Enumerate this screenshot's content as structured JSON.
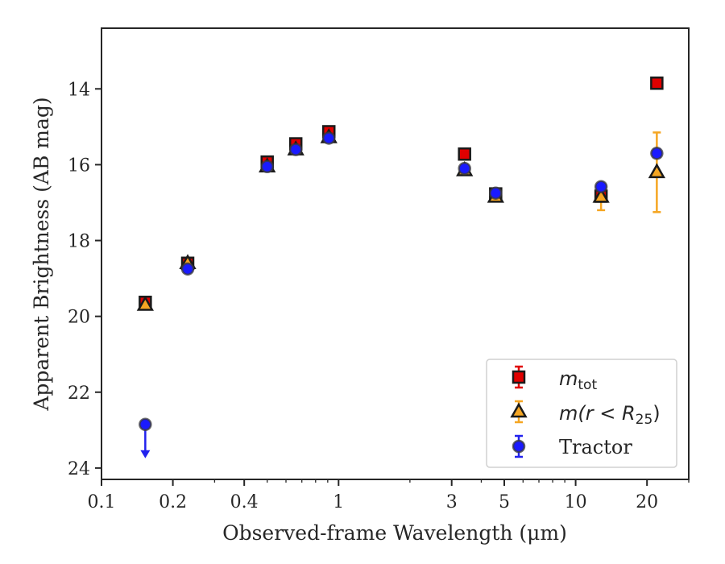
{
  "chart_data": {
    "type": "scatter",
    "xlabel": "Observed-frame Wavelength (μm)",
    "ylabel": "Apparent Brightness (AB mag)",
    "xscale": "log",
    "xlim": [
      0.1,
      30
    ],
    "ylim": [
      24.3,
      12.4
    ],
    "y_inverted": true,
    "x_ticks": [
      {
        "value": 0.1,
        "label": "0.1"
      },
      {
        "value": 0.2,
        "label": "0.2"
      },
      {
        "value": 0.4,
        "label": "0.4"
      },
      {
        "value": 1,
        "label": "1"
      },
      {
        "value": 3,
        "label": "3"
      },
      {
        "value": 5,
        "label": "5"
      },
      {
        "value": 10,
        "label": "10"
      },
      {
        "value": 20,
        "label": "20"
      }
    ],
    "y_ticks": [
      14,
      16,
      18,
      20,
      22,
      24
    ],
    "grid": false,
    "legend_position": "lower-right",
    "series": [
      {
        "name": "m_tot",
        "marker": "square",
        "color": "#e00000",
        "edge": "#1a1a1a",
        "errcolor": "#e00000",
        "points": [
          {
            "x": 0.153,
            "y": 19.63,
            "err": 0.1
          },
          {
            "x": 0.231,
            "y": 18.6,
            "err": 0.05
          },
          {
            "x": 0.5,
            "y": 15.93,
            "err": 0.03
          },
          {
            "x": 0.66,
            "y": 15.45,
            "err": 0.03
          },
          {
            "x": 0.91,
            "y": 15.13,
            "err": 0.03
          },
          {
            "x": 3.4,
            "y": 15.72,
            "err": 0.03
          },
          {
            "x": 4.6,
            "y": 16.77,
            "err": 0.03
          },
          {
            "x": 12.8,
            "y": 16.83,
            "err": 0.05
          },
          {
            "x": 22.0,
            "y": 13.85,
            "err": 0.05
          }
        ]
      },
      {
        "name": "m(r < R25)",
        "marker": "triangle",
        "color": "#f5a623",
        "edge": "#1a1a1a",
        "errcolor": "#f5a623",
        "points": [
          {
            "x": 0.153,
            "y": 19.7,
            "err": 0.1
          },
          {
            "x": 0.231,
            "y": 18.6,
            "err": 0.05
          },
          {
            "x": 0.5,
            "y": 16.05,
            "err": 0.03
          },
          {
            "x": 0.66,
            "y": 15.6,
            "err": 0.03
          },
          {
            "x": 0.91,
            "y": 15.28,
            "err": 0.03
          },
          {
            "x": 3.4,
            "y": 16.15,
            "err": 0.03
          },
          {
            "x": 4.6,
            "y": 16.85,
            "err": 0.03
          },
          {
            "x": 12.8,
            "y": 16.85,
            "err": 0.35
          },
          {
            "x": 22.0,
            "y": 16.2,
            "err": 1.05
          }
        ]
      },
      {
        "name": "Tractor",
        "marker": "circle",
        "color": "#1a1aff",
        "edge": "#3a3a3a",
        "errcolor": "#2222ee",
        "points": [
          {
            "x": 0.153,
            "y": 22.85,
            "upper_limit": true
          },
          {
            "x": 0.231,
            "y": 18.75,
            "err": 0.05
          },
          {
            "x": 0.5,
            "y": 16.05,
            "err": 0.03
          },
          {
            "x": 0.66,
            "y": 15.6,
            "err": 0.03
          },
          {
            "x": 0.91,
            "y": 15.3,
            "err": 0.03
          },
          {
            "x": 3.4,
            "y": 16.1,
            "err": 0.03
          },
          {
            "x": 4.6,
            "y": 16.75,
            "err": 0.03
          },
          {
            "x": 12.8,
            "y": 16.58,
            "err": 0.05
          },
          {
            "x": 22.0,
            "y": 15.7,
            "err": 0.1
          }
        ]
      }
    ]
  },
  "legend": {
    "m_tot_main": "m",
    "m_tot_sub": "tot",
    "m_r_main": "m(r < R",
    "m_r_sub": "25",
    "m_r_close": ")",
    "tractor": "Tractor"
  }
}
